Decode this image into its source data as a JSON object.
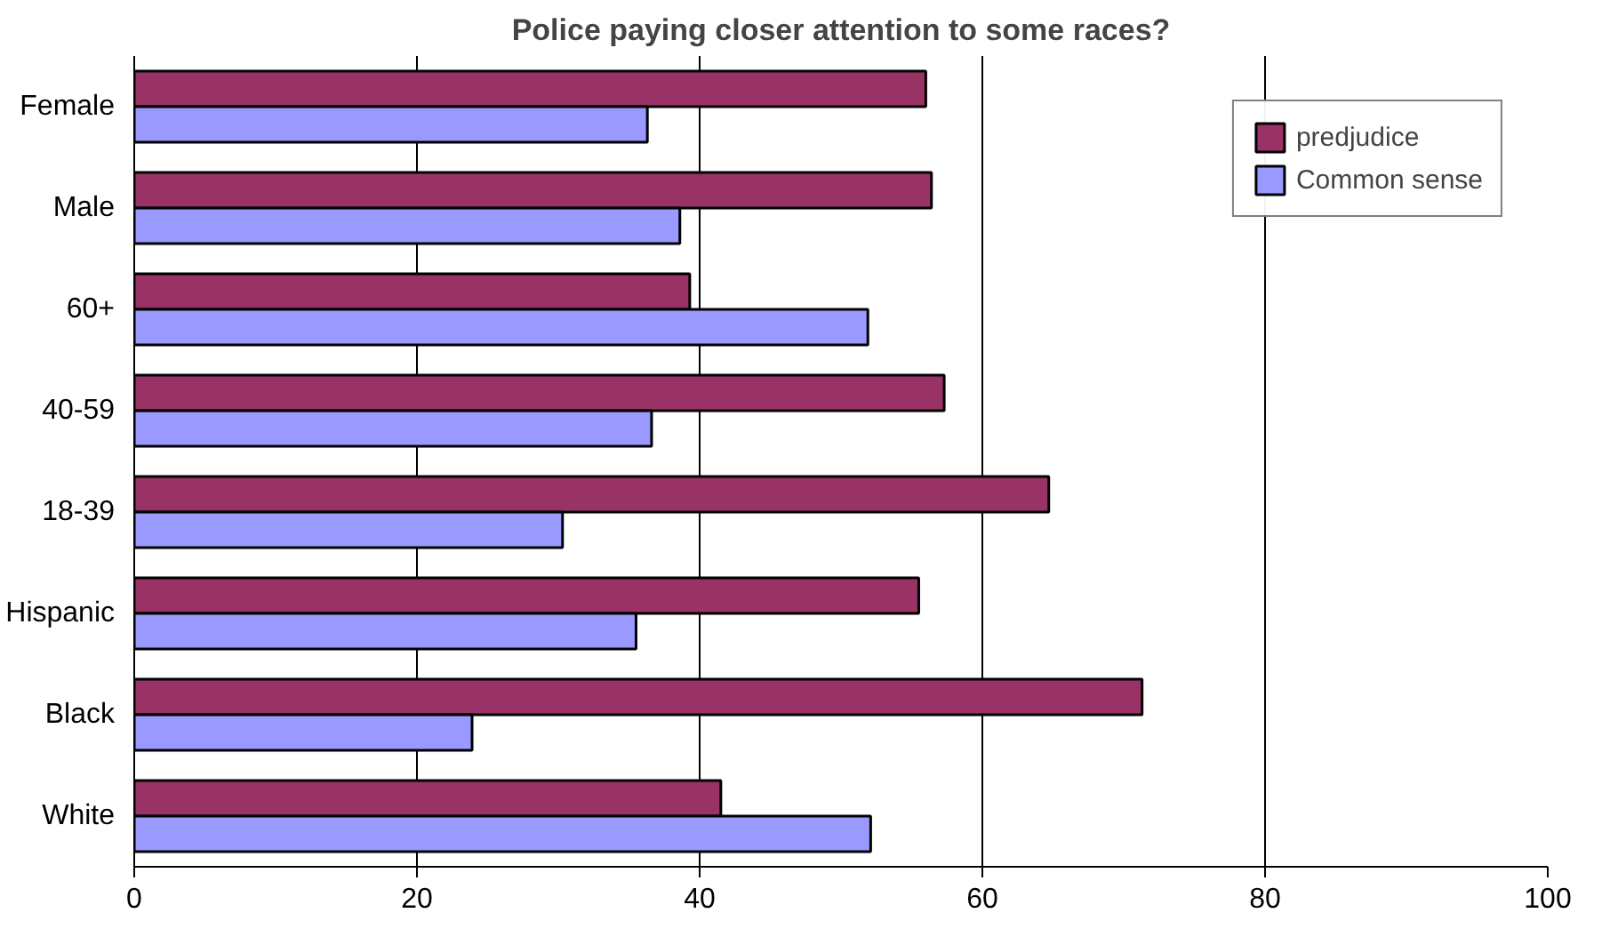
{
  "chart_data": {
    "type": "bar",
    "orientation": "horizontal",
    "title": "Police paying closer attention to some races?",
    "categories": [
      "Female",
      "Male",
      "60+",
      "40-59",
      "18-39",
      "Hispanic",
      "Black",
      "White"
    ],
    "series": [
      {
        "name": "predjudice",
        "color": "#993366",
        "values": [
          56.0,
          56.4,
          39.3,
          57.3,
          64.7,
          55.5,
          71.3,
          41.5
        ]
      },
      {
        "name": "Common sense",
        "color": "#9999ff",
        "values": [
          36.3,
          38.6,
          51.9,
          36.6,
          30.3,
          35.5,
          23.9,
          52.1
        ]
      }
    ],
    "xlim": [
      0,
      100
    ],
    "xticks": [
      0,
      20,
      40,
      60,
      80,
      100
    ],
    "grid": "x",
    "legend": "top right"
  }
}
